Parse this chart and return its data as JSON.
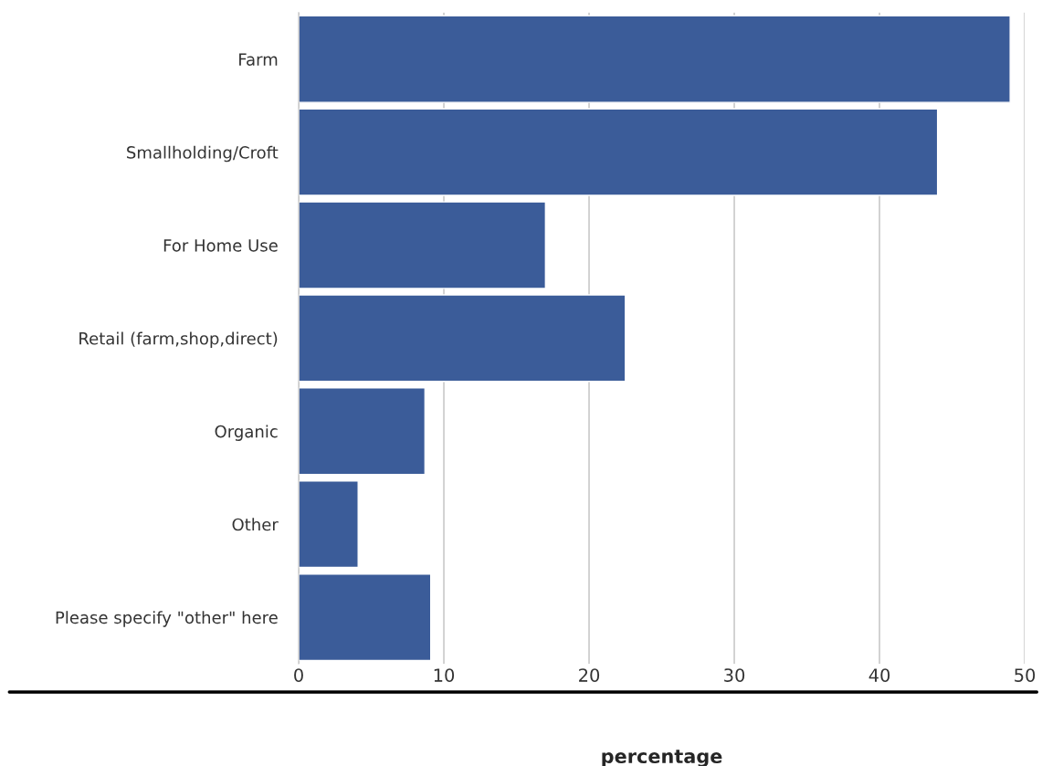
{
  "chart_data": {
    "type": "bar",
    "orientation": "horizontal",
    "xlabel": "percentage",
    "categories": [
      "Farm",
      "Smallholding/Croft",
      "For Home Use",
      "Retail (farm,shop,direct)",
      "Organic",
      "Other",
      "Please specify \"other\" here"
    ],
    "values": [
      49.0,
      44.0,
      17.0,
      22.5,
      8.7,
      4.1,
      9.1
    ],
    "color": "#3b5c99",
    "xlim": [
      0,
      50
    ],
    "xticks": [
      0,
      10,
      20,
      30,
      40,
      50
    ],
    "grid": "x"
  }
}
